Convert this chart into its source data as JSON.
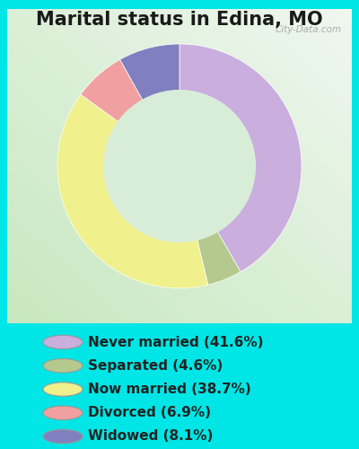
{
  "title": "Marital status in Edina, MO",
  "slices": [
    41.6,
    4.6,
    38.7,
    6.9,
    8.1
  ],
  "labels": [
    "Never married (41.6%)",
    "Separated (4.6%)",
    "Now married (38.7%)",
    "Divorced (6.9%)",
    "Widowed (8.1%)"
  ],
  "colors": [
    "#c9aede",
    "#b5c98e",
    "#f0f08c",
    "#f0a0a0",
    "#8080c0"
  ],
  "bg_cyan": "#00e5e5",
  "chart_border_color": "#cccccc",
  "watermark": "City-Data.com",
  "title_fontsize": 15,
  "legend_fontsize": 11,
  "donut_width": 0.38,
  "start_angle": 90,
  "hole_color": "#d8edd8"
}
